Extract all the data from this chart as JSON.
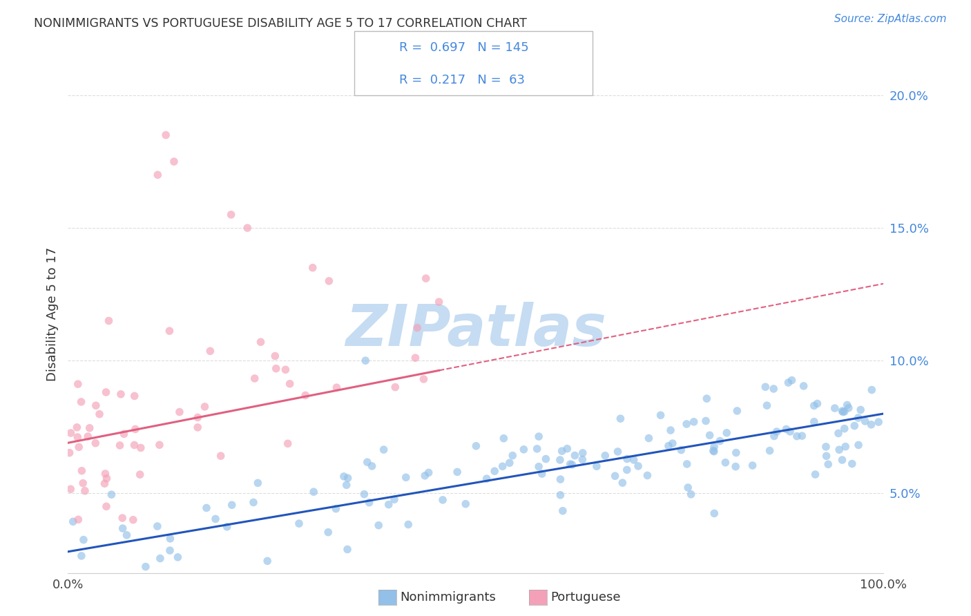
{
  "title": "NONIMMIGRANTS VS PORTUGUESE DISABILITY AGE 5 TO 17 CORRELATION CHART",
  "source": "Source: ZipAtlas.com",
  "ylabel": "Disability Age 5 to 17",
  "legend_nonimm": "Nonimmigrants",
  "legend_port": "Portuguese",
  "r_nonimm": 0.697,
  "n_nonimm": 145,
  "r_port": 0.217,
  "n_port": 63,
  "nonimm_color": "#92C0E8",
  "port_color": "#F4A0B8",
  "nonimm_line_color": "#2255BB",
  "port_line_color": "#E06080",
  "watermark": "ZIPatlas",
  "watermark_color": "#C5DCF2",
  "title_color": "#333333",
  "right_axis_color": "#4488DD",
  "xlim": [
    0.0,
    1.0
  ],
  "ylim": [
    0.02,
    0.215
  ],
  "yticks_right": [
    0.05,
    0.1,
    0.15,
    0.2
  ],
  "ytick_labels_right": [
    "5.0%",
    "10.0%",
    "15.0%",
    "20.0%"
  ],
  "xtick_labels": [
    "0.0%",
    "100.0%"
  ],
  "background_color": "#FFFFFF",
  "grid_color": "#DDDDDD"
}
